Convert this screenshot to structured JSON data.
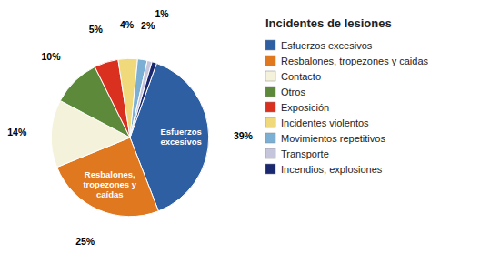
{
  "chart_data": {
    "type": "pie",
    "title": "Incidentes de lesiones",
    "categories": [
      "Esfuerzos excesivos",
      "Resbalones, tropezones y caidas",
      "Contacto",
      "Otros",
      "Exposición",
      "Incidentes violentos",
      "Movimientos repetitivos",
      "Transporte",
      "Incendios, explosiones"
    ],
    "values": [
      39,
      25,
      14,
      10,
      5,
      4,
      2,
      1,
      1
    ],
    "value_labels": [
      "39%",
      "25%",
      "14%",
      "10%",
      "5%",
      "4%",
      "2%",
      "1%",
      null
    ],
    "data_labels": true,
    "colors": [
      "#2E5FA3",
      "#E07820",
      "#F5F2DC",
      "#5C8A3A",
      "#D93020",
      "#EFD97A",
      "#7BAFD4",
      "#C5C5DC",
      "#1A2870"
    ],
    "annotations": [
      "Esfuerzos\nexcesivos",
      "Resbalones,\ntropezones y\ncaídas",
      null,
      null,
      null,
      null,
      null,
      null,
      null
    ],
    "legend": "right"
  }
}
